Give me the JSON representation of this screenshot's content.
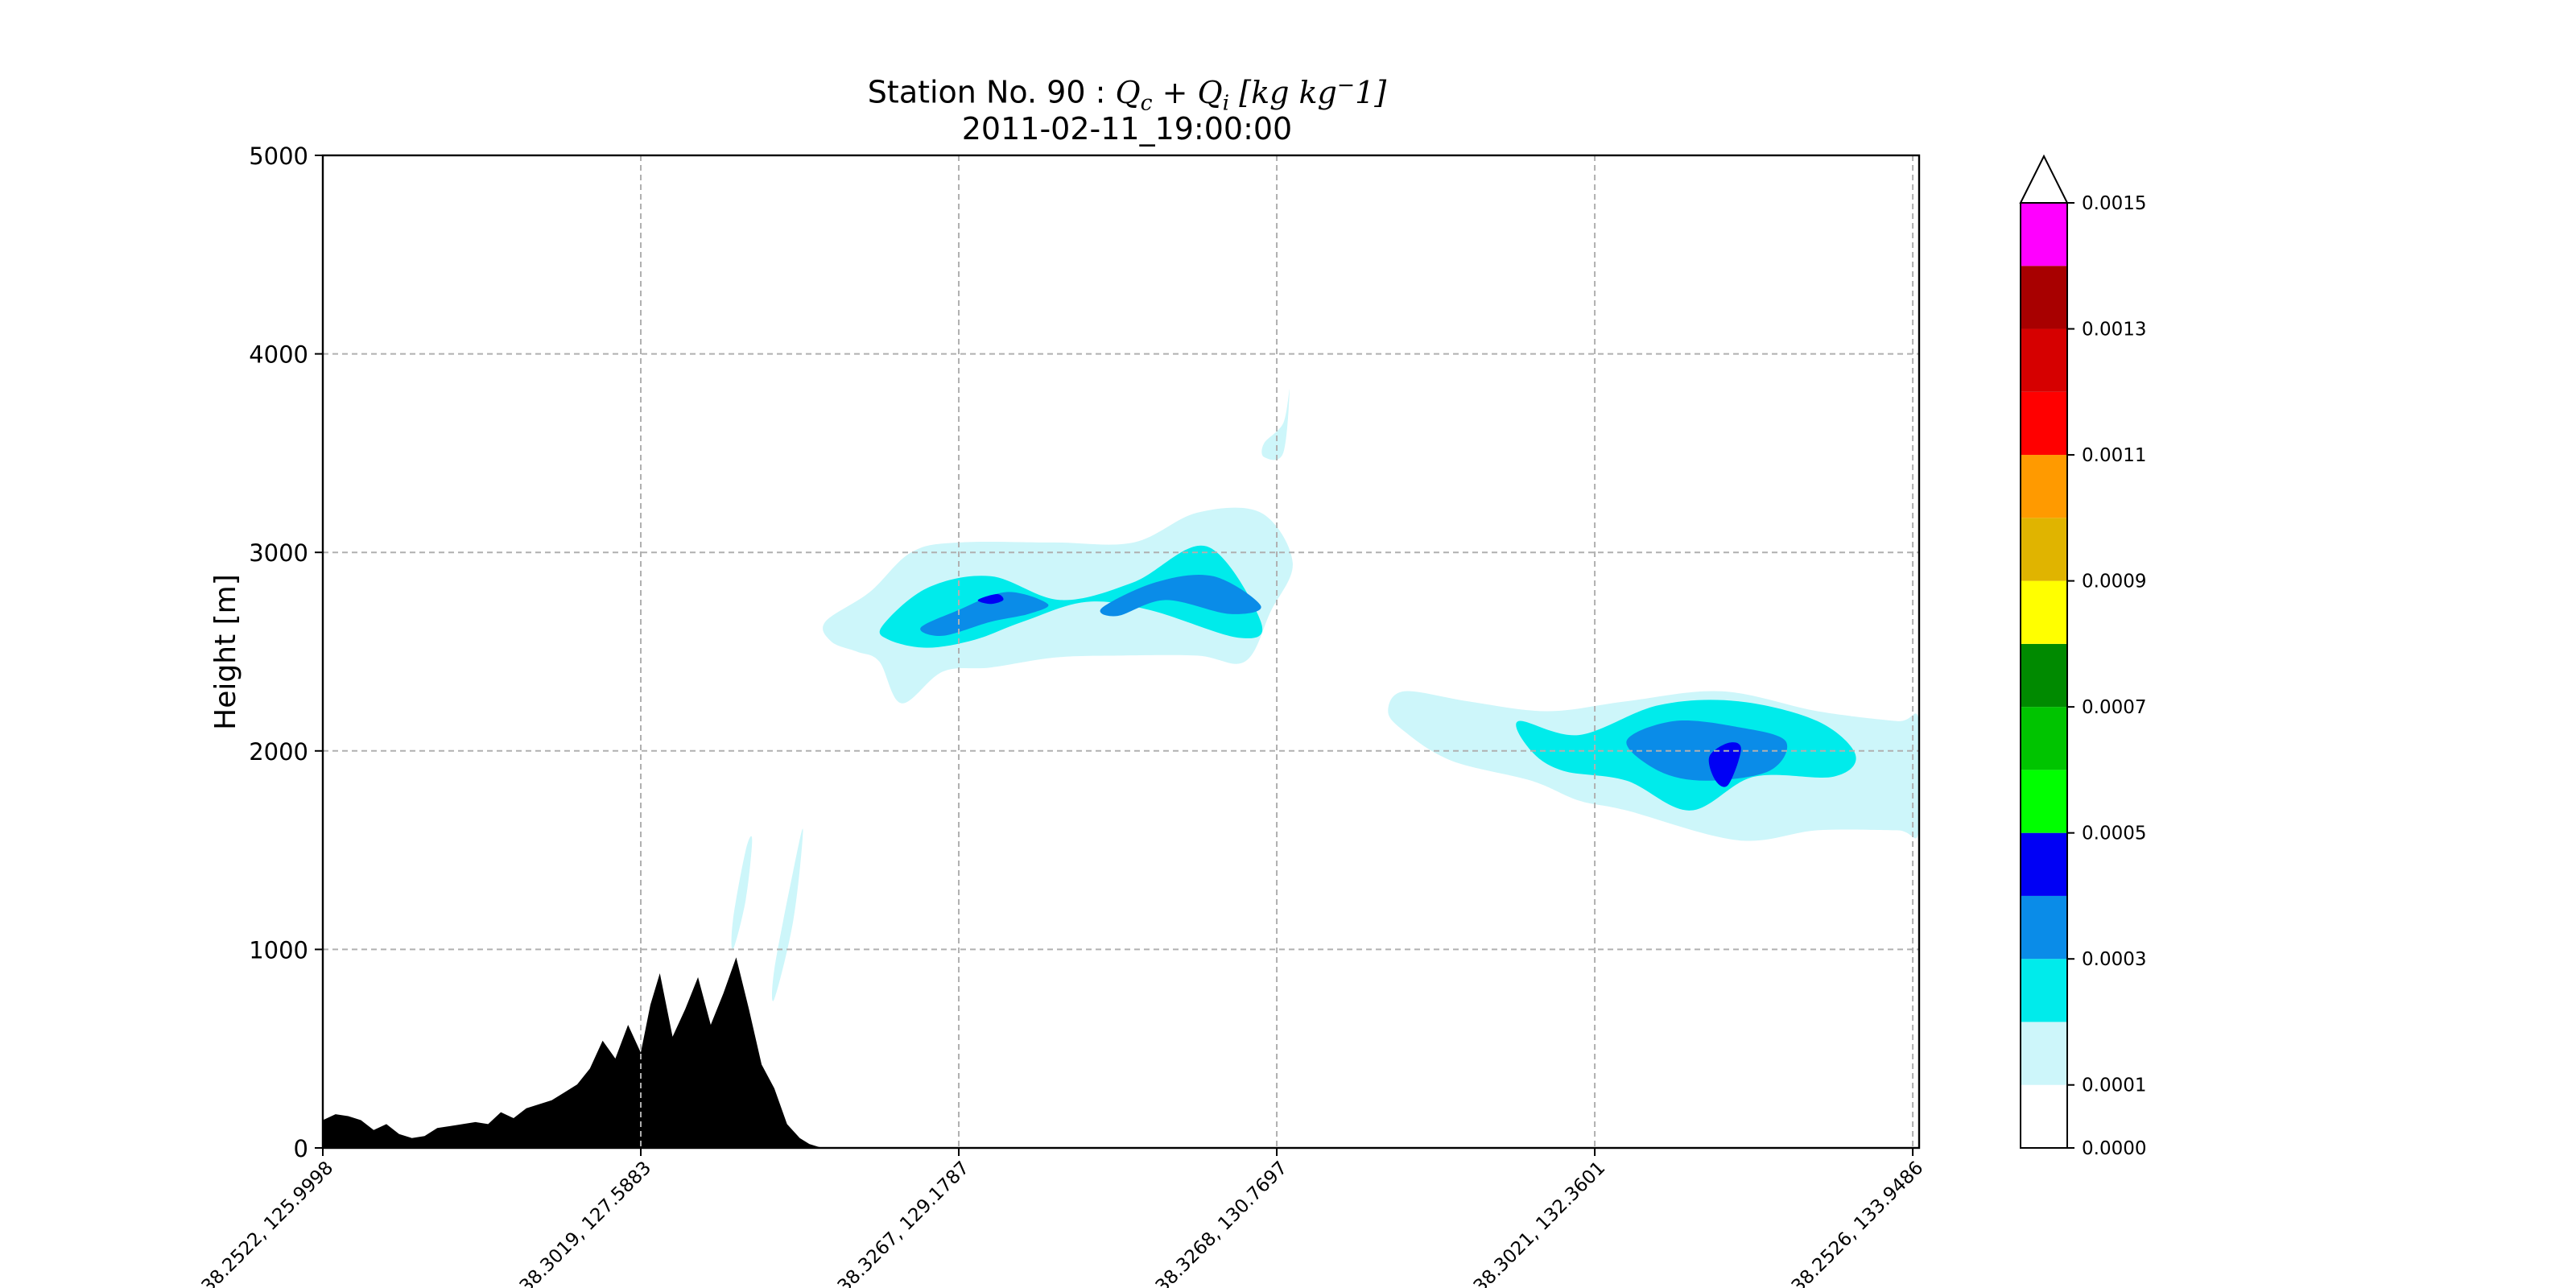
{
  "chart_data": {
    "type": "contour",
    "title": {
      "prefix": "Station No. 90 : ",
      "math": "Q_c + Q_i [kg kg^-1]",
      "line2": "2011-02-11_19:00:00"
    },
    "ylabel": "Height [m]",
    "ylim": [
      0,
      5000
    ],
    "yticks": [
      0,
      1000,
      2000,
      3000,
      4000,
      5000
    ],
    "xlim": [
      0,
      5.02
    ],
    "xtick_positions": [
      0,
      1,
      2,
      3,
      4,
      5
    ],
    "xtick_labels": [
      "38.2522, 125.9998",
      "38.3019, 127.5883",
      "38.3267, 129.1787",
      "38.3268, 130.7697",
      "38.3021, 132.3601",
      "38.2526, 133.9486"
    ],
    "grid": true,
    "colorbar": {
      "levels": [
        0.0,
        0.0001,
        0.0002,
        0.0003,
        0.0004,
        0.0005,
        0.0006,
        0.0007,
        0.0008,
        0.0009,
        0.001,
        0.0011,
        0.0012,
        0.0013,
        0.0014,
        0.0015
      ],
      "colors": [
        "#ffffff",
        "#cdf6fa",
        "#00ebeb",
        "#0a8ce8",
        "#0000f5",
        "#00ff00",
        "#00c400",
        "#008a00",
        "#ffff00",
        "#e0b400",
        "#ff9a00",
        "#ff0000",
        "#d60000",
        "#a80000",
        "#ff00ff",
        "#9955dd"
      ],
      "tick_values": [
        "0.0000",
        "0.0001",
        "0.0003",
        "0.0005",
        "0.0007",
        "0.0009",
        "0.0011",
        "0.0013",
        "0.0015"
      ],
      "extend": "max"
    },
    "terrain": {
      "color": "#000000",
      "x": [
        0,
        0.04,
        0.08,
        0.12,
        0.16,
        0.2,
        0.24,
        0.28,
        0.32,
        0.36,
        0.4,
        0.44,
        0.48,
        0.52,
        0.56,
        0.6,
        0.64,
        0.68,
        0.72,
        0.76,
        0.8,
        0.84,
        0.88,
        0.92,
        0.96,
        1.0,
        1.03,
        1.06,
        1.1,
        1.14,
        1.18,
        1.22,
        1.26,
        1.3,
        1.34,
        1.38,
        1.42,
        1.46,
        1.5,
        1.53,
        1.56,
        1.58,
        1.6
      ],
      "y": [
        140,
        170,
        160,
        140,
        90,
        120,
        70,
        50,
        60,
        100,
        110,
        120,
        130,
        120,
        180,
        150,
        200,
        220,
        240,
        280,
        320,
        400,
        540,
        450,
        620,
        480,
        720,
        880,
        560,
        700,
        860,
        620,
        780,
        960,
        700,
        420,
        300,
        120,
        50,
        20,
        5,
        0,
        0
      ],
      "note_omit": true
    },
    "contour_regions": [
      {
        "level": 0.0001,
        "x": [
          1.58,
          1.72,
          1.85,
          2.0,
          2.3,
          2.55,
          2.75,
          2.95,
          3.05,
          2.98,
          2.9,
          2.75,
          2.5,
          2.3,
          2.1,
          1.95,
          1.82,
          1.75,
          1.68,
          1.6
        ],
        "y": [
          2650,
          2800,
          3000,
          3050,
          3050,
          3050,
          3200,
          3200,
          2950,
          2700,
          2450,
          2480,
          2480,
          2470,
          2420,
          2400,
          2240,
          2450,
          2500,
          2550
        ]
      },
      {
        "level": 0.0001,
        "x": [
          3.4,
          3.6,
          3.85,
          4.1,
          4.4,
          4.7,
          4.95,
          5.02,
          5.02,
          4.95,
          4.7,
          4.45,
          4.1,
          3.95,
          3.8,
          3.55,
          3.4,
          3.35
        ],
        "y": [
          2300,
          2250,
          2200,
          2250,
          2300,
          2200,
          2150,
          2150,
          1600,
          1600,
          1600,
          1550,
          1700,
          1750,
          1850,
          1950,
          2100,
          2200
        ]
      },
      {
        "level": 0.0001,
        "x": [
          2.96,
          3.02,
          3.04,
          3.02,
          2.96
        ],
        "y": [
          3550,
          3650,
          3820,
          3500,
          3480
        ]
      },
      {
        "level": 0.0001,
        "x": [
          1.29,
          1.33,
          1.35,
          1.33,
          1.29
        ],
        "y": [
          1000,
          1250,
          1550,
          1500,
          1150
        ]
      },
      {
        "level": 0.0001,
        "x": [
          1.42,
          1.48,
          1.51,
          1.48,
          1.42
        ],
        "y": [
          750,
          1150,
          1600,
          1400,
          900
        ]
      },
      {
        "level": 0.0002,
        "x": [
          1.76,
          1.9,
          2.1,
          2.32,
          2.55,
          2.78,
          2.95,
          2.88,
          2.6,
          2.4,
          2.2,
          2.05,
          1.9,
          1.78
        ],
        "y": [
          2630,
          2820,
          2880,
          2760,
          2850,
          3030,
          2650,
          2570,
          2710,
          2750,
          2650,
          2560,
          2520,
          2560
        ]
      },
      {
        "level": 0.0002,
        "x": [
          3.76,
          3.95,
          4.2,
          4.45,
          4.7,
          4.82,
          4.75,
          4.5,
          4.3,
          4.1,
          3.9,
          3.8
        ],
        "y": [
          2150,
          2080,
          2230,
          2250,
          2150,
          1980,
          1870,
          1870,
          1700,
          1850,
          1900,
          2000
        ]
      },
      {
        "level": 0.0003,
        "x": [
          1.88,
          2.0,
          2.15,
          2.28,
          2.22,
          2.1,
          1.95
        ],
        "y": [
          2620,
          2710,
          2800,
          2740,
          2690,
          2650,
          2580
        ]
      },
      {
        "level": 0.0003,
        "x": [
          2.45,
          2.62,
          2.8,
          2.95,
          2.85,
          2.65,
          2.5
        ],
        "y": [
          2720,
          2850,
          2880,
          2730,
          2690,
          2760,
          2680
        ]
      },
      {
        "level": 0.0003,
        "x": [
          4.1,
          4.25,
          4.45,
          4.6,
          4.55,
          4.35,
          4.2
        ],
        "y": [
          2050,
          2150,
          2120,
          2050,
          1900,
          1850,
          1900
        ]
      },
      {
        "level": 0.0004,
        "x": [
          2.06,
          2.12,
          2.14,
          2.1
        ],
        "y": [
          2760,
          2790,
          2760,
          2740
        ]
      },
      {
        "level": 0.0004,
        "x": [
          4.36,
          4.42,
          4.46,
          4.42,
          4.38
        ],
        "y": [
          1970,
          2040,
          2010,
          1830,
          1850
        ]
      }
    ]
  }
}
